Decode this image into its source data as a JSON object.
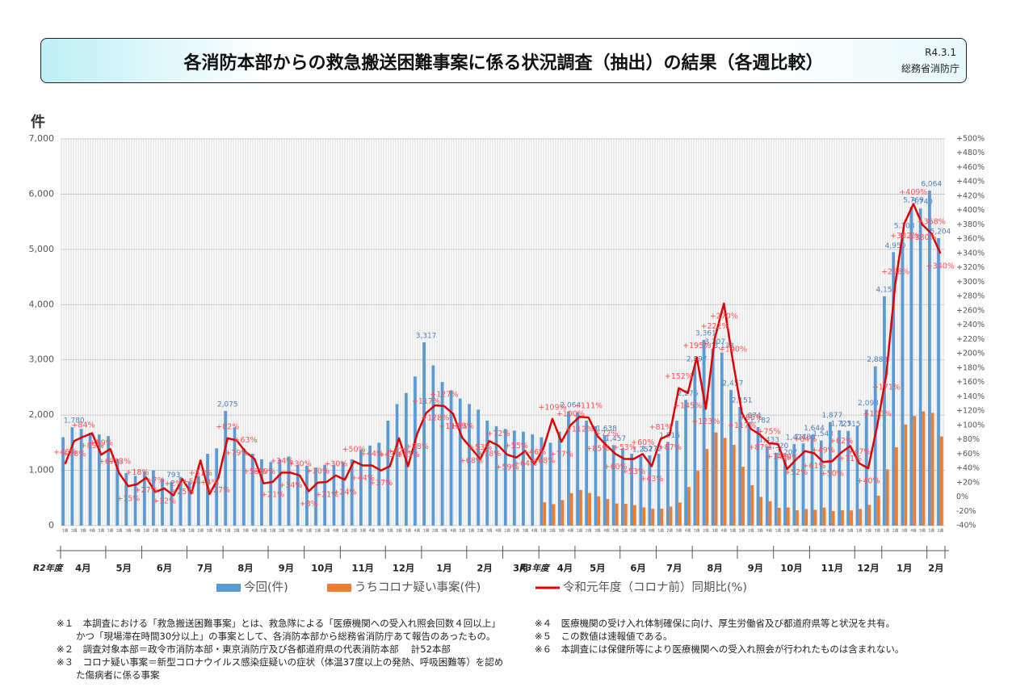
{
  "header": {
    "title": "各消防本部からの救急搬送困難事案に係る状況調査（抽出）の結果（各週比較）",
    "date": "R4.3.1",
    "org": "総務省消防庁"
  },
  "chart_data": {
    "type": "bar_line",
    "y_unit": "件",
    "fiscal_years": [
      {
        "name": "R2年度",
        "months": [
          {
            "name": "4月",
            "weeks": [
              "1週",
              "2週",
              "3週",
              "4週",
              "5週"
            ]
          },
          {
            "name": "5月",
            "weeks": [
              "1週",
              "2週",
              "3週",
              "4週"
            ]
          },
          {
            "name": "6月",
            "weeks": [
              "1週",
              "2週",
              "3週",
              "4週",
              "5週"
            ]
          },
          {
            "name": "7月",
            "weeks": [
              "1週",
              "2週",
              "3週",
              "4週"
            ]
          },
          {
            "name": "8月",
            "weeks": [
              "1週",
              "2週",
              "3週",
              "4週",
              "5週"
            ]
          },
          {
            "name": "9月",
            "weeks": [
              "1週",
              "2週",
              "3週",
              "4週"
            ]
          },
          {
            "name": "10月",
            "weeks": [
              "1週",
              "2週",
              "3週",
              "4週"
            ]
          },
          {
            "name": "11月",
            "weeks": [
              "1週",
              "2週",
              "3週",
              "4週",
              "5週"
            ]
          },
          {
            "name": "12月",
            "weeks": [
              "1週",
              "2週",
              "3週",
              "4週"
            ]
          },
          {
            "name": "1月",
            "weeks": [
              "1週",
              "2週",
              "3週",
              "4週",
              "5週"
            ]
          },
          {
            "name": "2月",
            "weeks": [
              "1週",
              "2週",
              "3週",
              "4週"
            ]
          },
          {
            "name": "3月",
            "weeks": [
              "1週",
              "2週",
              "3週",
              "4週"
            ]
          }
        ]
      },
      {
        "name": "R3年度",
        "months": [
          {
            "name": "4月",
            "weeks": [
              "1週",
              "2週",
              "3週",
              "4週"
            ]
          },
          {
            "name": "5月",
            "weeks": [
              "1週",
              "2週",
              "3週",
              "4週",
              "5週"
            ]
          },
          {
            "name": "6月",
            "weeks": [
              "1週",
              "2週",
              "3週",
              "4週"
            ]
          },
          {
            "name": "7月",
            "weeks": [
              "1週",
              "2週",
              "3週",
              "4週"
            ]
          },
          {
            "name": "8月",
            "weeks": [
              "1週",
              "2週",
              "3週",
              "4週",
              "5週"
            ]
          },
          {
            "name": "9月",
            "weeks": [
              "1週",
              "2週",
              "3週",
              "4週"
            ]
          },
          {
            "name": "10月",
            "weeks": [
              "1週",
              "2週",
              "3週",
              "4週"
            ]
          },
          {
            "name": "11月",
            "weeks": [
              "1週",
              "2週",
              "3週",
              "4週",
              "5週"
            ]
          },
          {
            "name": "12月",
            "weeks": [
              "1週",
              "2週",
              "3週"
            ]
          },
          {
            "name": "1月",
            "weeks": [
              "1週",
              "2週",
              "3週",
              "4週",
              "5週"
            ]
          },
          {
            "name": "2月",
            "weeks": [
              "1週",
              "2週"
            ]
          }
        ]
      }
    ],
    "series": [
      {
        "name": "今回(件)",
        "color": "#5b9bd5",
        "kind": "bar",
        "values": [
          1600,
          1780,
          1750,
          1680,
          1650,
          1620,
          1200,
          950,
          900,
          980,
          1000,
          850,
          793,
          880,
          800,
          900,
          1300,
          1400,
          2075,
          1780,
          1400,
          1300,
          1200,
          1150,
          1200,
          1250,
          1100,
          1080,
          1050,
          1100,
          1100,
          1150,
          1200,
          1380,
          1450,
          1500,
          1900,
          2200,
          2400,
          2700,
          3317,
          2900,
          2600,
          2450,
          2300,
          2200,
          2100,
          1900,
          1800,
          1750,
          1720,
          1700,
          1650,
          1600,
          1500,
          1700,
          2064,
          2050,
          1900,
          1800,
          1638,
          1457,
          1400,
          1300,
          1257,
          1272,
          1300,
          1515,
          1900,
          2276,
          2897,
          3361,
          3207,
          3133,
          2457,
          2151,
          1874,
          1782,
          1433,
          1320,
          1207,
          1477,
          1486,
          1644,
          1543,
          1877,
          1725,
          1715,
          1800,
          2098,
          2883,
          4151,
          4950,
          5303,
          5769,
          5740,
          6064,
          5204
        ],
        "value_labels": [
          null,
          "1,780",
          null,
          null,
          null,
          null,
          null,
          null,
          null,
          null,
          null,
          null,
          "793",
          null,
          null,
          null,
          null,
          null,
          "2,075",
          null,
          null,
          null,
          null,
          null,
          null,
          null,
          null,
          null,
          null,
          null,
          null,
          null,
          null,
          null,
          null,
          null,
          null,
          null,
          null,
          null,
          "3,317",
          null,
          null,
          null,
          null,
          null,
          null,
          null,
          null,
          null,
          null,
          null,
          null,
          null,
          null,
          null,
          "2,064",
          null,
          null,
          null,
          "1,638",
          "1,457",
          null,
          null,
          "1,257",
          "1,272",
          null,
          "1,515",
          null,
          "2,276",
          "2,897",
          "3,361",
          "3,207",
          "3,133",
          "2,457",
          "2,151",
          "1,874",
          "1,782",
          "1,433",
          "1,320",
          "1,207",
          "1,477",
          "1,486",
          "1,644",
          "1,543",
          "1,877",
          "1,725",
          "1,715",
          null,
          "2,098",
          "2,883",
          "4,151",
          "4,950",
          "5,303",
          "5,769",
          "5,740",
          "6,064",
          "5,204"
        ]
      },
      {
        "name": "うちコロナ疑い事案(件)",
        "color": "#ed7d31",
        "kind": "bar",
        "values": [
          null,
          null,
          null,
          null,
          null,
          null,
          null,
          null,
          null,
          null,
          null,
          null,
          null,
          null,
          null,
          null,
          null,
          null,
          null,
          null,
          null,
          null,
          null,
          null,
          null,
          null,
          null,
          null,
          null,
          null,
          null,
          null,
          null,
          null,
          null,
          null,
          null,
          null,
          null,
          null,
          null,
          null,
          null,
          null,
          null,
          null,
          null,
          null,
          null,
          null,
          null,
          null,
          null,
          421,
          388,
          463,
          587,
          644,
          591,
          531,
          480,
          400,
          396,
          370,
          330,
          304,
          307,
          345,
          419,
          698,
          991,
          1387,
          1687,
          1587,
          1462,
          1065,
          731,
          520,
          440,
          322,
          329,
          278,
          299,
          286,
          328,
          264,
          277,
          276,
          301,
          375,
          541,
          1019,
          1418,
          1830,
          1983,
          2067,
          2042,
          1614
        ]
      },
      {
        "name": "令和元年度（コロナ前）同期比(%)",
        "color": "#e00000",
        "kind": "line",
        "axis": "y2",
        "values": [
          46,
          78,
          84,
          89,
          59,
          67,
          33,
          15,
          18,
          27,
          7,
          12,
          2,
          25,
          5,
          51,
          4,
          27,
          82,
          79,
          63,
          53,
          19,
          21,
          34,
          34,
          30,
          8,
          20,
          21,
          30,
          24,
          50,
          44,
          44,
          37,
          43,
          82,
          43,
          88,
          117,
          128,
          127,
          116,
          83,
          68,
          53,
          78,
          72,
          59,
          55,
          64,
          46,
          68,
          109,
          77,
          100,
          112,
          111,
          85,
          72,
          60,
          53,
          53,
          60,
          43,
          81,
          87,
          152,
          145,
          195,
          123,
          222,
          270,
          190,
          117,
          95,
          87,
          75,
          74,
          39,
          52,
          64,
          61,
          49,
          50,
          62,
          71,
          47,
          40,
          100,
          171,
          298,
          382,
          409,
          380,
          368,
          340
        ],
        "value_labels": [
          "+46%",
          "+78%",
          "+84%",
          "+89%",
          "+59%",
          "+67%",
          "+33%",
          "+15%",
          "+18%",
          "+27%",
          "+7%",
          "+12%",
          "+2%",
          "+25%",
          "+5%",
          "+51%",
          "+4%",
          "+27%",
          "+82%",
          "+79%",
          "+63%",
          "+53%",
          "+19%",
          "+21%",
          "+34%",
          "+34%",
          "+30%",
          "+8%",
          "+20%",
          "+21%",
          "+30%",
          "+24%",
          "+50%",
          "+44%",
          "+44%",
          "+37%",
          "+43%",
          "+82%",
          "+43%",
          "+88%",
          "+117%",
          "+128%",
          "+127%",
          "+116%",
          "+83%",
          "+68%",
          "+53%",
          "+78%",
          "+72%",
          "+59%",
          "+55%",
          "+64%",
          "+46%",
          "+68%",
          "+109%",
          "+77%",
          "+100%",
          "+112%",
          "+111%",
          "+85%",
          "+72%",
          "+60%",
          "+53%",
          "+53%",
          "+60%",
          "+43%",
          "+81%",
          "+87%",
          "+152%",
          "+145%",
          "+195%",
          "+123%",
          "+222%",
          "+270%",
          "+190%",
          "+117%",
          "+95%",
          "+87%",
          "+75%",
          "+74%",
          "+39%",
          "+52%",
          "+64%",
          "+61%",
          "+49%",
          "+50%",
          "+62%",
          "+71%",
          "+47%",
          "+40%",
          "+100%",
          "+171%",
          "+298%",
          "+382%",
          "+409%",
          "+380%",
          "+368%",
          "+340%"
        ]
      }
    ],
    "ylim": [
      0,
      7000
    ],
    "yticks": [
      0,
      {
        "value": 1000,
        "label": "1,000"
      },
      {
        "value": 2000,
        "label": "2,000"
      },
      {
        "value": 3000,
        "label": "3,000"
      },
      {
        "value": 4000,
        "label": "4,000"
      },
      {
        "value": 5000,
        "label": "5,000"
      },
      {
        "value": 6000,
        "label": "6,000"
      },
      {
        "value": 7000,
        "label": "7,000"
      }
    ],
    "y2lim": [
      -40,
      500
    ],
    "y2ticks": [
      {
        "value": -40,
        "label": "-40%"
      },
      {
        "value": -20,
        "label": "-20%"
      },
      {
        "value": 0,
        "label": "0%"
      },
      {
        "value": 20,
        "label": "+20%"
      },
      {
        "value": 40,
        "label": "+40%"
      },
      {
        "value": 60,
        "label": "+60%"
      },
      {
        "value": 80,
        "label": "+80%"
      },
      {
        "value": 100,
        "label": "+100%"
      },
      {
        "value": 120,
        "label": "+120%"
      },
      {
        "value": 140,
        "label": "+140%"
      },
      {
        "value": 160,
        "label": "+160%"
      },
      {
        "value": 180,
        "label": "+180%"
      },
      {
        "value": 200,
        "label": "+200%"
      },
      {
        "value": 220,
        "label": "+220%"
      },
      {
        "value": 240,
        "label": "+240%"
      },
      {
        "value": 260,
        "label": "+260%"
      },
      {
        "value": 280,
        "label": "+280%"
      },
      {
        "value": 300,
        "label": "+300%"
      },
      {
        "value": 320,
        "label": "+320%"
      },
      {
        "value": 340,
        "label": "+340%"
      },
      {
        "value": 360,
        "label": "+360%"
      },
      {
        "value": 380,
        "label": "+380%"
      },
      {
        "value": 400,
        "label": "+400%"
      },
      {
        "value": 420,
        "label": "+420%"
      },
      {
        "value": 440,
        "label": "+440%"
      },
      {
        "value": 460,
        "label": "+460%"
      },
      {
        "value": 480,
        "label": "+480%"
      },
      {
        "value": 500,
        "label": "+500%"
      }
    ],
    "grid": true,
    "legend": "bottom"
  },
  "notes": {
    "left": [
      "※１　本調査における「救急搬送困難事案」とは、救急隊による「医療機関への受入れ照会回数４回以上」かつ「現場滞在時間30分以上」の事案として、各消防本部から総務省消防庁あて報告のあったもの。",
      "※２　調査対象本部＝政令市消防本部・東京消防庁及び各都道府県の代表消防本部　 計52本部",
      "※３　コロナ疑い事案＝新型コロナウイルス感染症疑いの症状（体温37度以上の発熱、呼吸困難等）を認めた傷病者に係る事案"
    ],
    "right": [
      "※４　医療機関の受け入れ体制確保に向け、厚生労働省及び都道府県等と状況を共有。",
      "※５　この数値は速報値である。",
      "※６　本調査には保健所等により医療機関への受入れ照会が行われたものは含まれない。"
    ]
  }
}
